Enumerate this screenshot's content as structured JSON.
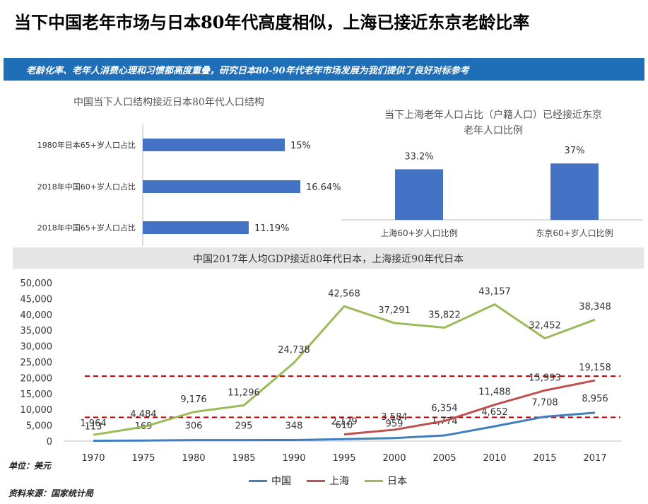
{
  "page": {
    "title": "当下中国老年市场与日本80年代高度相似，上海已接近东京老龄比率",
    "banner": "老龄化率、老年人消费心理和习惯都高度重叠，研究日本80-90年代老年市场发展为我们提供了良好对标参考",
    "unit_note": "单位：美元",
    "source_note": "资料来源：国家统计局"
  },
  "colors": {
    "banner": "#1f6fb8",
    "bar": "#4472c4",
    "china": "#3f7fbf",
    "shanghai": "#c0504d",
    "japan": "#9bbb59",
    "ref_line": "#c00000"
  },
  "chart_data": [
    {
      "type": "bar",
      "orientation": "horizontal",
      "title": "中国当下人口结构接近日本80年代人口结构",
      "categories": [
        "1980年日本65+岁人口占比",
        "2018年中国60+岁人口占比",
        "2018年中国65+岁人口占比"
      ],
      "values": [
        15,
        16.64,
        11.19
      ],
      "value_labels": [
        "15%",
        "16.64%",
        "11.19%"
      ],
      "xlim": [
        0,
        20
      ]
    },
    {
      "type": "bar",
      "orientation": "vertical",
      "title_line1": "当下上海老年人口占比（户籍人口）已经接近东京",
      "title_line2": "老年人口比例",
      "categories": [
        "上海60+岁人口比例",
        "东京60+岁人口比例"
      ],
      "values": [
        33.2,
        37
      ],
      "value_labels": [
        "33.2%",
        "37%"
      ],
      "ylim": [
        0,
        45
      ]
    },
    {
      "type": "line",
      "title": "中国2017年人均GDP接近80年代日本，上海接近90年代日本",
      "x": [
        "1970",
        "1975",
        "1980",
        "1985",
        "1990",
        "1995",
        "2000",
        "2005",
        "2010",
        "2015",
        "2017"
      ],
      "ylim": [
        0,
        50000
      ],
      "yticks": [
        "0",
        "5,000",
        "10,000",
        "15,000",
        "20,000",
        "25,000",
        "30,000",
        "35,000",
        "40,000",
        "45,000",
        "50,000"
      ],
      "grid": false,
      "legend_position": "bottom",
      "reference_lines": [
        20500,
        7500
      ],
      "series": [
        {
          "name": "中国",
          "key": "china",
          "values": [
            113,
            169,
            306,
            295,
            348,
            610,
            959,
            1774,
            4652,
            7708,
            8956
          ],
          "labels": [
            "113",
            "169",
            "306",
            "295",
            "348",
            "610",
            "959",
            "1,774",
            "4,652",
            "7,708",
            "8,956"
          ]
        },
        {
          "name": "上海",
          "key": "shanghai",
          "values": [
            null,
            null,
            null,
            null,
            null,
            2129,
            3584,
            6354,
            11488,
            15993,
            19158
          ],
          "labels": [
            "",
            "",
            "",
            "",
            "",
            "2,129",
            "3,584",
            "6,354",
            "11,488",
            "15,993",
            "19,158"
          ]
        },
        {
          "name": "日本",
          "key": "japan",
          "values": [
            1964,
            4484,
            9176,
            11296,
            24738,
            42568,
            37291,
            35822,
            43157,
            32452,
            38348
          ],
          "labels": [
            "1,964",
            "4,484",
            "9,176",
            "11,296",
            "24,738",
            "42,568",
            "37,291",
            "35,822",
            "43,157",
            "32,452",
            "38,348"
          ]
        }
      ]
    }
  ]
}
